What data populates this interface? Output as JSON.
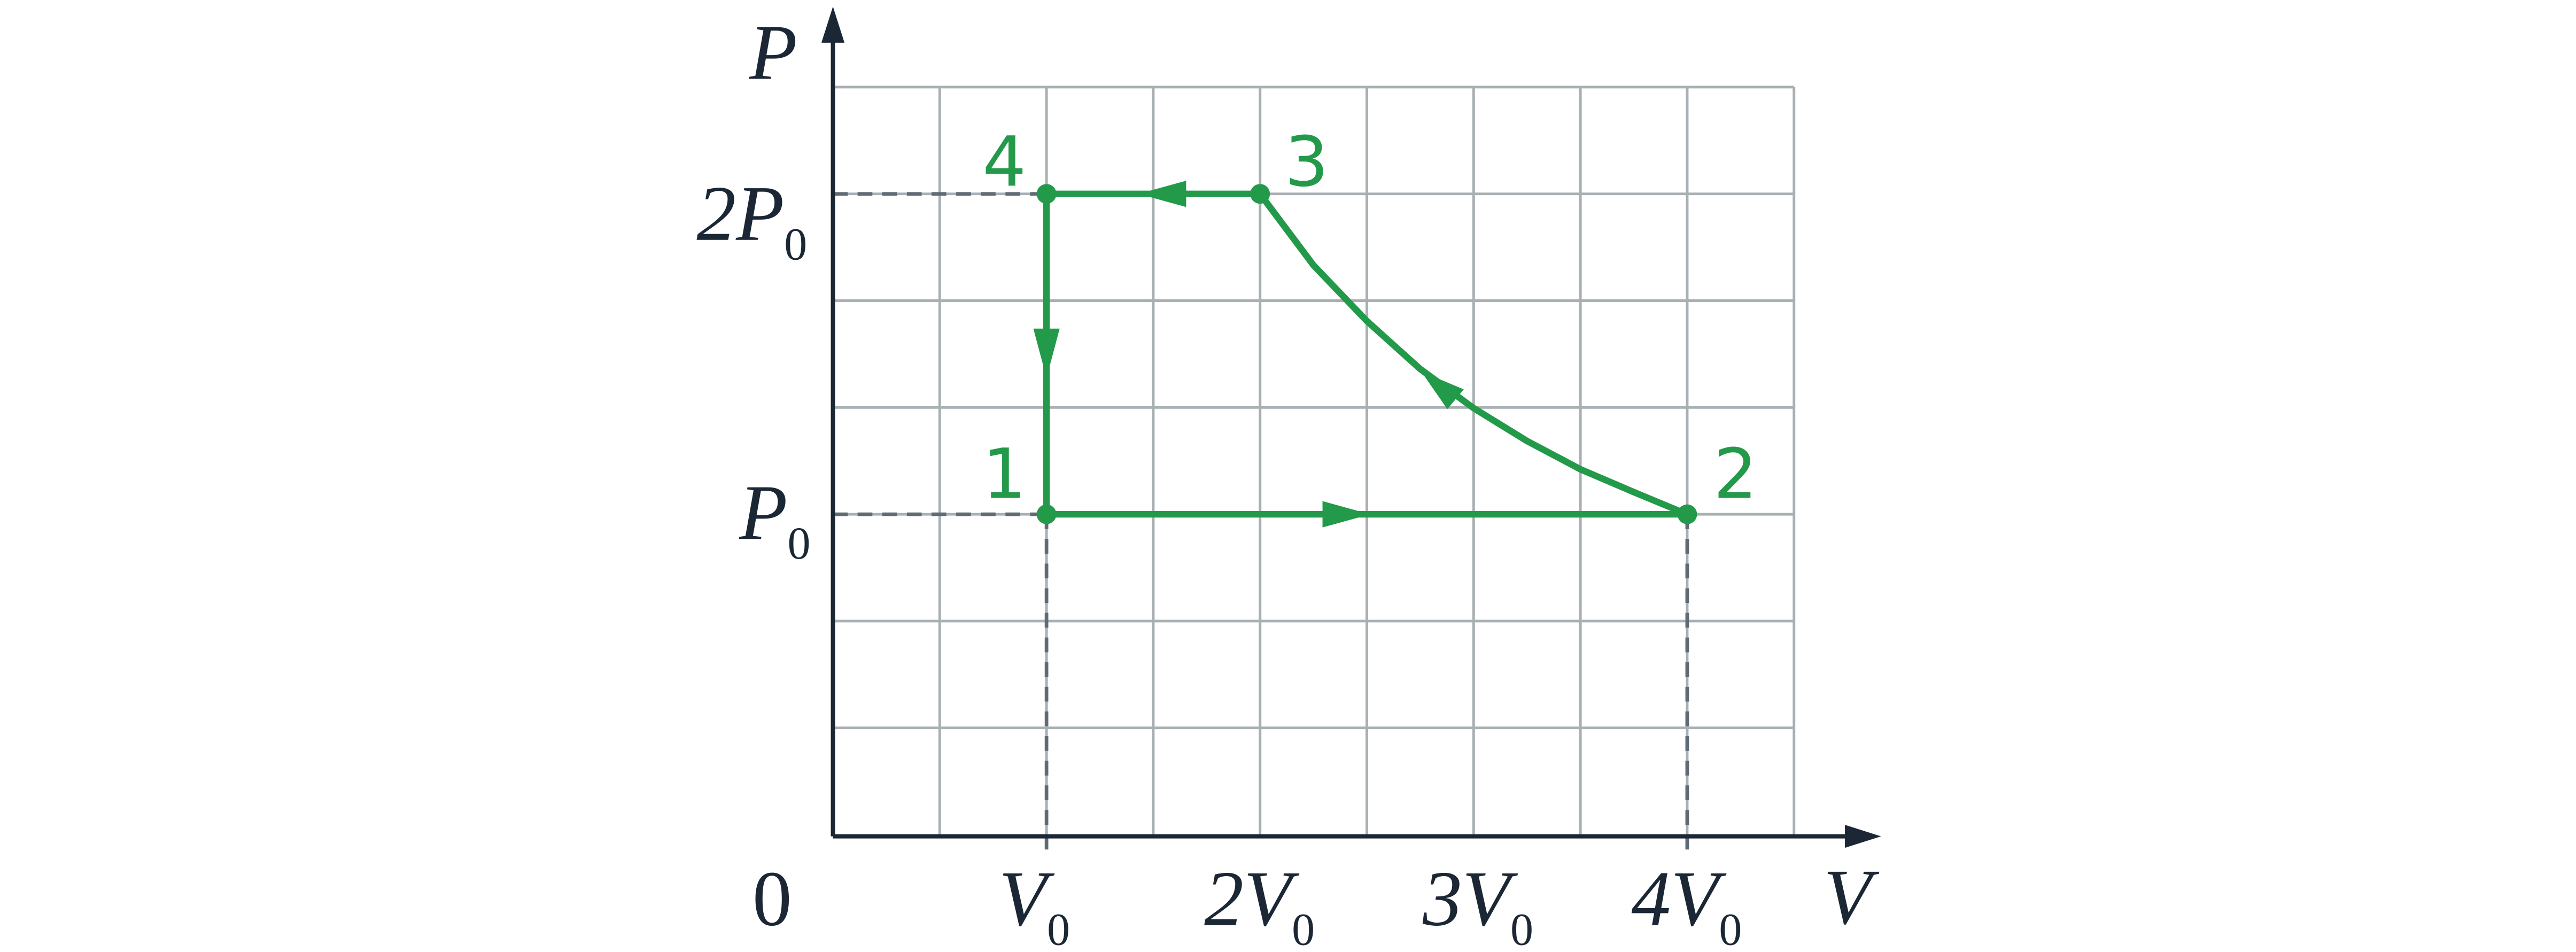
{
  "axes": {
    "y_label": "P",
    "x_label": "V",
    "origin": "0"
  },
  "y_ticks": [
    {
      "main": "2P",
      "sub": "0"
    },
    {
      "main": "P",
      "sub": "0"
    }
  ],
  "x_ticks": [
    {
      "main": "V",
      "sub": "0"
    },
    {
      "main": "2V",
      "sub": "0"
    },
    {
      "main": "3V",
      "sub": "0"
    },
    {
      "main": "4V",
      "sub": "0"
    }
  ],
  "points": [
    "1",
    "2",
    "3",
    "4"
  ]
}
